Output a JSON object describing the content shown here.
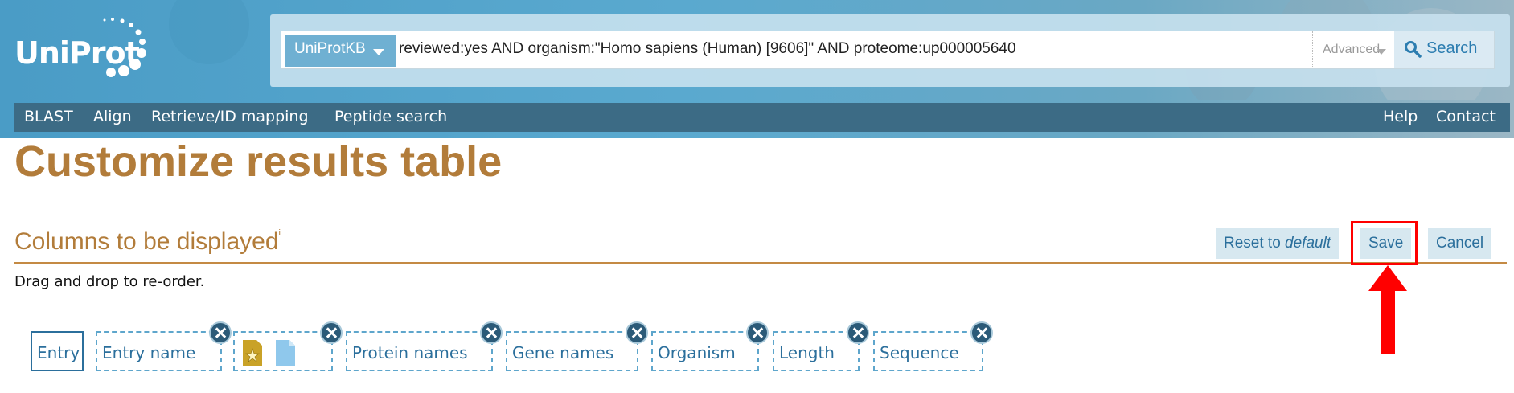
{
  "logo": {
    "text": "UniProt"
  },
  "search": {
    "db": "UniProtKB",
    "query": "reviewed:yes AND organism:\"Homo sapiens (Human) [9606]\" AND proteome:up000005640",
    "advanced_label": "Advanced",
    "search_label": "Search"
  },
  "nav": {
    "left": [
      "BLAST",
      "Align",
      "Retrieve/ID mapping",
      "Peptide search"
    ],
    "right": [
      "Help",
      "Contact"
    ]
  },
  "page": {
    "title": "Customize results table"
  },
  "section": {
    "title": "Columns to be displayed",
    "info": "i",
    "hint": "Drag and drop to re-order."
  },
  "actions": {
    "reset_prefix": "Reset to ",
    "reset_em": "default",
    "save": "Save",
    "cancel": "Cancel"
  },
  "columns": [
    "Entry",
    "Entry name",
    "Protein names",
    "Gene names",
    "Organism",
    "Length",
    "Sequence"
  ],
  "colors": {
    "accent": "#b27c3a",
    "link": "#2b6f9c",
    "nav": "#3c6b85",
    "highlight": "#ff0000"
  }
}
